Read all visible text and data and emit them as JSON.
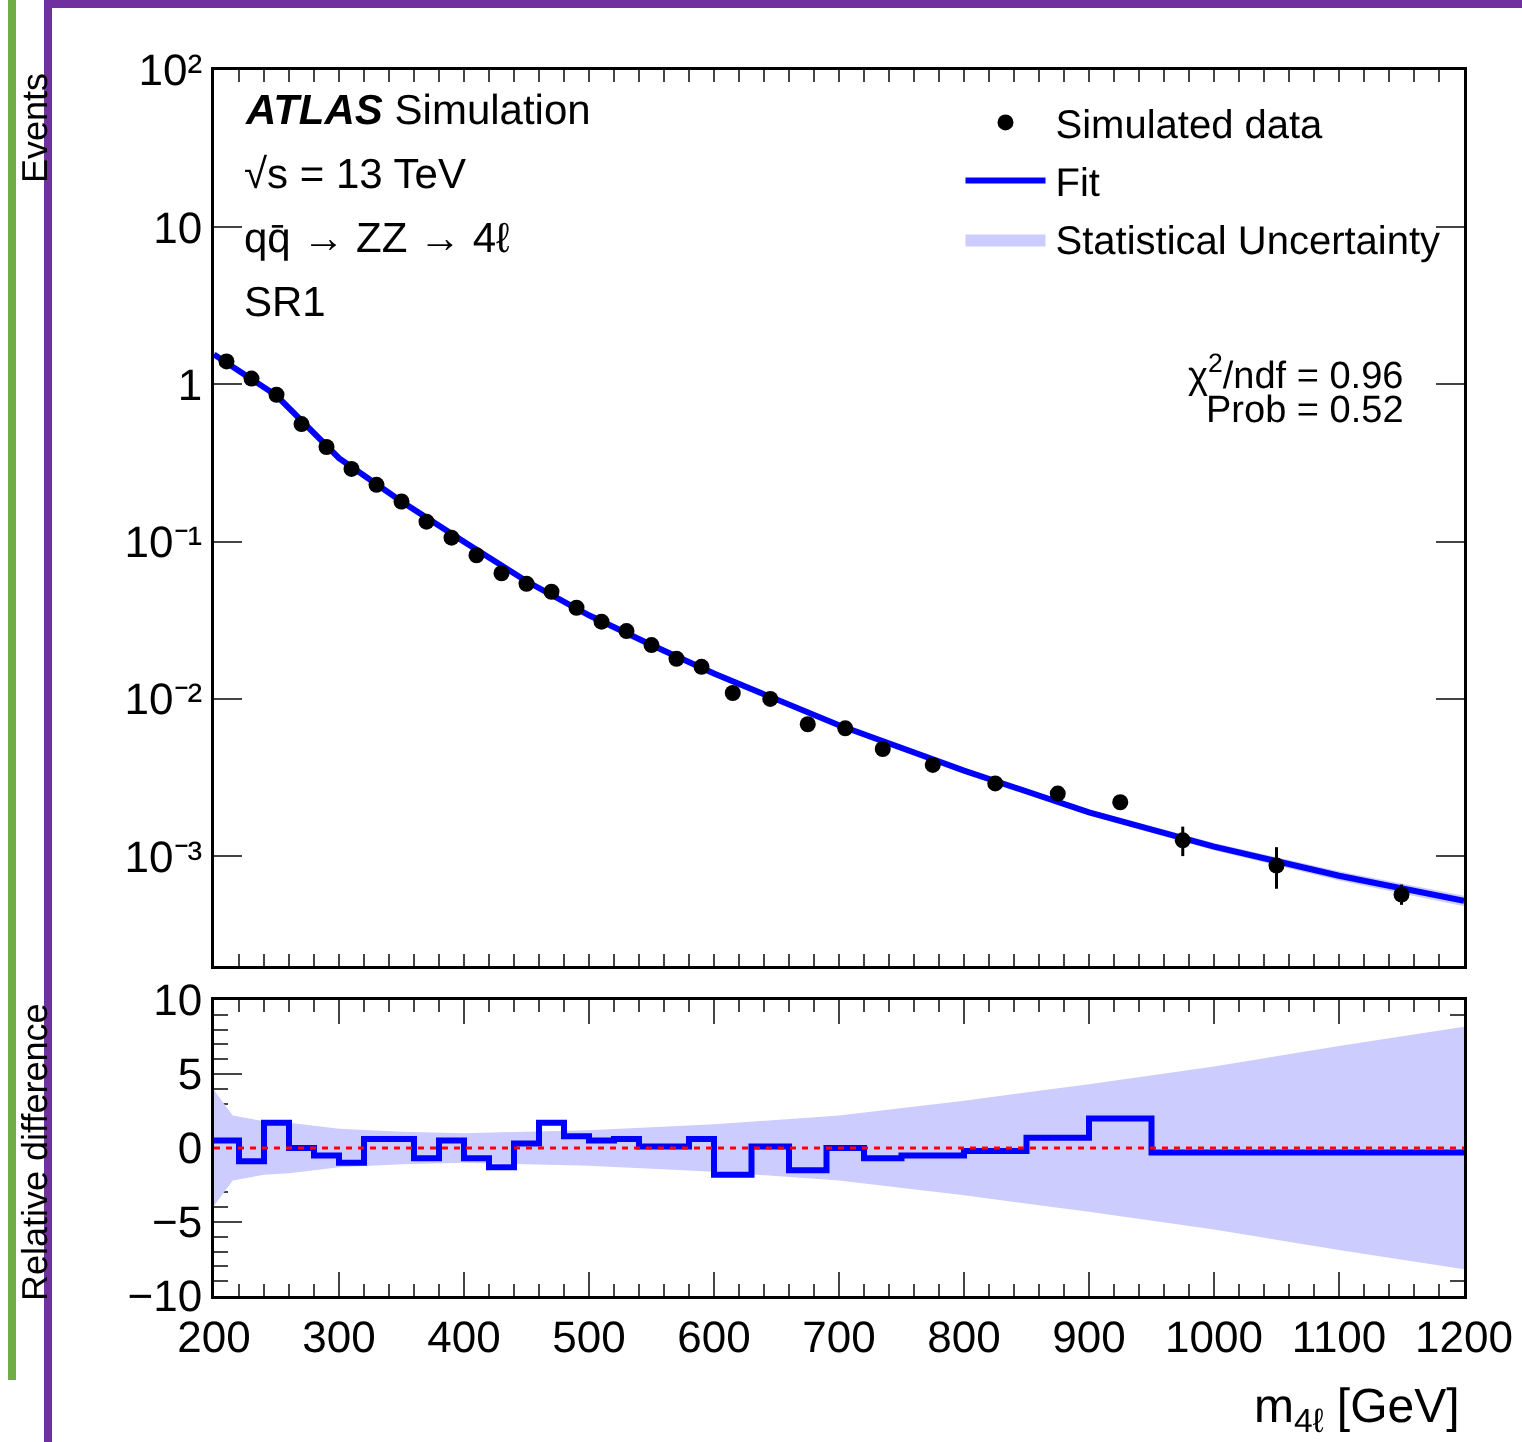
{
  "chart_data": [
    {
      "type": "scatter",
      "ylabel": "Events",
      "log": "y",
      "grid": false,
      "legend": "top right",
      "tick_labels": "y",
      "xlim": [
        200,
        1200
      ],
      "xticks": [
        {
          "value": 200,
          "label": null
        },
        {
          "value": 300,
          "label": null
        },
        {
          "value": 400,
          "label": null
        },
        {
          "value": 500,
          "label": null
        },
        {
          "value": 600,
          "label": null
        },
        {
          "value": 700,
          "label": null
        },
        {
          "value": 800,
          "label": null
        },
        {
          "value": 900,
          "label": null
        },
        {
          "value": 1000,
          "label": null
        },
        {
          "value": 1100,
          "label": null
        },
        {
          "value": 1200,
          "label": null
        }
      ],
      "ylim": [
        0.0002,
        100
      ],
      "yticks": [
        {
          "value": 0.001,
          "label": "10⁻³"
        },
        {
          "value": 0.01,
          "label": "10⁻²"
        },
        {
          "value": 0.1,
          "label": "10⁻¹"
        },
        1,
        10,
        {
          "value": 100,
          "label": "10²"
        }
      ],
      "annotations": [
        "ATLAS Simulation",
        "√s = 13 TeV",
        "qq̄ → ZZ → 4ℓ",
        "SR1",
        "χ$^{2}$/ndf = 0.96",
        "Prob = 0.52"
      ],
      "series": [
        {
          "name": "Simulated data",
          "marker": "circle",
          "color": "#000000",
          "x": [
            210,
            230,
            250,
            270,
            290,
            310,
            330,
            350,
            370,
            390,
            410,
            430,
            450,
            470,
            490,
            510,
            530,
            550,
            570,
            590,
            615,
            645,
            675,
            705,
            735,
            775,
            825,
            875,
            925,
            975,
            1050,
            1150
          ],
          "values": [
            1.4,
            1.09,
            0.86,
            0.56,
            0.4,
            0.29,
            0.23,
            0.18,
            0.134,
            0.106,
            0.082,
            0.063,
            0.054,
            0.048,
            0.038,
            0.031,
            0.027,
            0.022,
            0.018,
            0.016,
            0.0109,
            0.01,
            0.0069,
            0.0065,
            0.0048,
            0.0038,
            0.0029,
            0.0025,
            0.0022,
            0.00126,
            0.00087,
            0.00057
          ],
          "errors": [
            null,
            null,
            null,
            null,
            null,
            null,
            null,
            null,
            null,
            null,
            null,
            null,
            null,
            null,
            null,
            null,
            null,
            null,
            null,
            null,
            null,
            null,
            null,
            null,
            null,
            null,
            null,
            null,
            null,
            [
              0.001,
              0.00154
            ],
            [
              0.00062,
              0.00114
            ],
            [
              0.00049,
              0.00066
            ]
          ]
        },
        {
          "name": "Fit",
          "type": "line",
          "marker": "none",
          "color": "#0000ff",
          "line_style": "solid",
          "x": [
            200,
            250,
            300,
            350,
            400,
            450,
            500,
            550,
            600,
            700,
            800,
            900,
            1000,
            1100,
            1200
          ],
          "values": [
            1.55,
            0.85,
            0.34,
            0.18,
            0.1,
            0.056,
            0.034,
            0.022,
            0.0145,
            0.0068,
            0.0035,
            0.0019,
            0.00115,
            0.00075,
            0.00052
          ],
          "lower": [
            1.49,
            0.835,
            0.336,
            0.178,
            0.099,
            0.0554,
            0.0336,
            0.0217,
            0.0143,
            0.00665,
            0.00339,
            0.00182,
            0.00109,
            0.0007,
            0.00048
          ],
          "upper": [
            1.61,
            0.865,
            0.344,
            0.182,
            0.101,
            0.0566,
            0.0344,
            0.0223,
            0.0147,
            0.00695,
            0.00361,
            0.00198,
            0.00121,
            0.0008,
            0.00056
          ]
        },
        {
          "name": "Statistical Uncertainty",
          "type": "area",
          "color": "#ccccff"
        }
      ]
    },
    {
      "type": "histogram",
      "xlabel": "m$_{4ℓ}$ [GeV]",
      "ylabel": "Relative difference",
      "grid": false,
      "legend": false,
      "xlim": [
        200,
        1200
      ],
      "xticks": [
        200,
        300,
        400,
        500,
        600,
        700,
        800,
        900,
        1000,
        1100,
        1200
      ],
      "ylim": [
        -10,
        10
      ],
      "yticks": [
        {
          "value": -10,
          "label": "−10"
        },
        {
          "value": -5,
          "label": "−5"
        },
        0,
        5,
        10
      ],
      "series": [
        {
          "type": "line",
          "marker": "none",
          "color": "#ff0000",
          "line_style": "dotted",
          "x": [
            200,
            215,
            240,
            260,
            300,
            350,
            400,
            450,
            500,
            600,
            700,
            800,
            900,
            1000,
            1100,
            1200
          ],
          "values": [
            0,
            0,
            0,
            0,
            0,
            0,
            0,
            0,
            0,
            0,
            0,
            0,
            0,
            0,
            0,
            0
          ],
          "lower": [
            -3.9,
            -2.2,
            -1.8,
            -1.7,
            -1.3,
            -1.1,
            -1.0,
            -1.1,
            -1.2,
            -1.6,
            -2.2,
            -3.2,
            -4.3,
            -5.5,
            -6.9,
            -8.2
          ],
          "upper": [
            3.9,
            2.2,
            1.8,
            1.7,
            1.3,
            1.1,
            1.0,
            1.1,
            1.2,
            1.6,
            2.2,
            3.2,
            4.3,
            5.5,
            6.9,
            8.2
          ]
        },
        {
          "type": "area",
          "color": "#ccccff"
        },
        {
          "color": "#0000ff",
          "bins": [
            200,
            220,
            240,
            260,
            280,
            300,
            320,
            340,
            360,
            380,
            400,
            420,
            440,
            460,
            480,
            500,
            520,
            540,
            560,
            580,
            600,
            630,
            660,
            690,
            720,
            750,
            800,
            850,
            900,
            950,
            1000,
            1100,
            1200
          ],
          "values": [
            0.5,
            -0.9,
            1.7,
            0,
            -0.5,
            -1.0,
            0.6,
            0.6,
            -0.7,
            0.5,
            -0.7,
            -1.3,
            0.3,
            1.7,
            0.8,
            0.5,
            0.6,
            0.1,
            0.1,
            0.6,
            -1.8,
            0.1,
            -1.5,
            0,
            -0.7,
            -0.5,
            -0.2,
            0.7,
            2.0,
            -0.3,
            -0.3,
            -0.3
          ]
        }
      ]
    }
  ]
}
